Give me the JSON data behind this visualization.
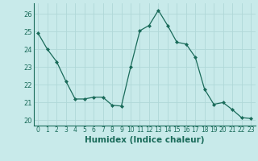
{
  "x": [
    0,
    1,
    2,
    3,
    4,
    5,
    6,
    7,
    8,
    9,
    10,
    11,
    12,
    13,
    14,
    15,
    16,
    17,
    18,
    19,
    20,
    21,
    22,
    23
  ],
  "y": [
    24.9,
    24.0,
    23.3,
    22.2,
    21.2,
    21.2,
    21.3,
    21.3,
    20.85,
    20.8,
    23.0,
    25.05,
    25.35,
    26.2,
    25.35,
    24.4,
    24.3,
    23.55,
    21.75,
    20.9,
    21.0,
    20.6,
    20.15,
    20.1
  ],
  "line_color": "#1a6b5a",
  "marker": "D",
  "marker_size": 2.0,
  "bg_color": "#c8eaea",
  "grid_color": "#b0d8d8",
  "xlabel": "Humidex (Indice chaleur)",
  "xlabel_fontsize": 7.5,
  "ylabel_ticks": [
    20,
    21,
    22,
    23,
    24,
    25,
    26
  ],
  "xlim": [
    -0.5,
    23.5
  ],
  "ylim": [
    19.7,
    26.6
  ],
  "tick_fontsize": 5.5,
  "ytick_fontsize": 6.0
}
